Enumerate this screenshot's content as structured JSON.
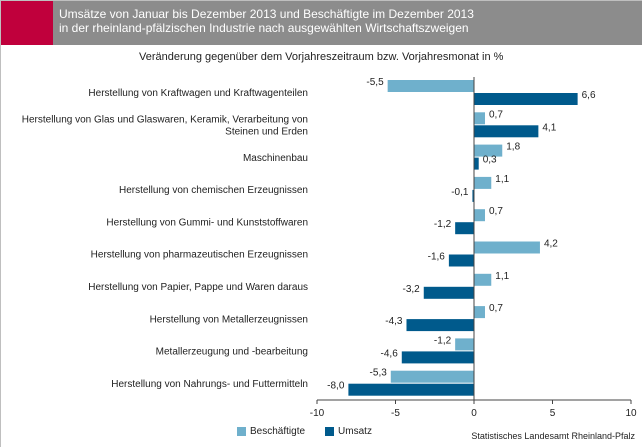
{
  "title_line1": "Umsätze von Januar bis Dezember 2013 und Beschäftigte im Dezember 2013",
  "title_line2": "in der rheinland-pfälzischen Industrie nach ausgewählten Wirtschaftszweigen",
  "source": "Statistisches Landesamt Rheinland-Pfalz",
  "chart_data": {
    "type": "bar",
    "orientation": "horizontal",
    "subtitle": "Veränderung gegenüber dem Vorjahreszeitraum bzw. Vorjahresmonat in %",
    "categories": [
      "Herstellung von Kraftwagen und Kraftwagenteilen",
      "Herstellung von Glas und Glaswaren, Keramik, Verarbeitung von\nSteinen und Erden",
      "Maschinenbau",
      "Herstellung von chemischen Erzeugnissen",
      "Herstellung von Gummi- und Kunststoffwaren",
      "Herstellung von pharmazeutischen Erzeugnissen",
      "Herstellung von Papier, Pappe und Waren daraus",
      "Herstellung von Metallerzeugnissen",
      "Metallerzeugung und -bearbeitung",
      "Herstellung von Nahrungs- und Futtermitteln"
    ],
    "series": [
      {
        "name": "Beschäftigte",
        "color": "#6fb0cc",
        "values": [
          -5.5,
          0.7,
          1.8,
          1.1,
          0.7,
          4.2,
          1.1,
          0.7,
          -1.2,
          -5.3
        ],
        "labels": [
          "-5,5",
          "0,7",
          "1,8",
          "1,1",
          "0,7",
          "4,2",
          "1,1",
          "0,7",
          "-1,2",
          "-5,3"
        ]
      },
      {
        "name": "Umsatz",
        "color": "#005a8c",
        "values": [
          6.6,
          4.1,
          0.3,
          -0.1,
          -1.2,
          -1.6,
          -3.2,
          -4.3,
          -4.6,
          -8.0
        ],
        "labels": [
          "6,6",
          "4,1",
          "0,3",
          "-0,1",
          "-1,2",
          "-1,6",
          "-3,2",
          "-4,3",
          "-4,6",
          "-8,0"
        ]
      }
    ],
    "xlim": [
      -10,
      10
    ],
    "xticks": [
      -10,
      -5,
      0,
      5,
      10
    ],
    "xtick_labels": [
      "-10",
      "-5",
      "0",
      "5",
      "10"
    ],
    "grid": false,
    "legend": "bottom"
  }
}
